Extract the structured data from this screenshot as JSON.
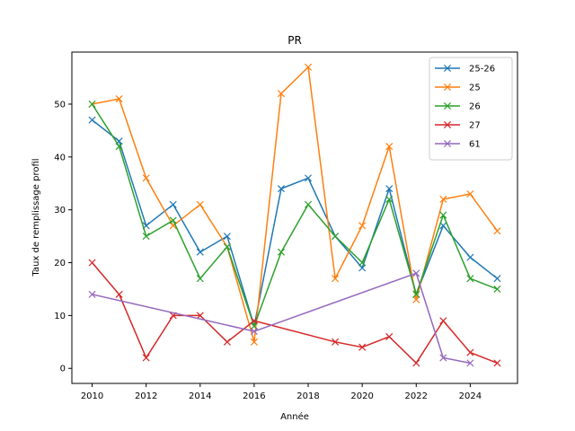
{
  "chart_data": {
    "type": "line",
    "title": "PR",
    "xlabel": "Année",
    "ylabel": "Taux de remplissage profil",
    "xlim": [
      2009.25,
      2025.75
    ],
    "ylim": [
      -2.85,
      59.85
    ],
    "xticks": [
      2010,
      2012,
      2014,
      2016,
      2018,
      2020,
      2022,
      2024
    ],
    "yticks": [
      0,
      10,
      20,
      30,
      40,
      50
    ],
    "grid": false,
    "legend_position": "top-right",
    "marker": "x",
    "series": [
      {
        "name": "25-26",
        "color": "#1f77b4",
        "x": [
          2010,
          2011,
          2012,
          2013,
          2014,
          2015,
          2016,
          2017,
          2018,
          2019,
          2020,
          2021,
          2022,
          2023,
          2024,
          2025
        ],
        "y": [
          47,
          43,
          27,
          31,
          22,
          25,
          8,
          34,
          36,
          25,
          19,
          34,
          14,
          27,
          21,
          17
        ]
      },
      {
        "name": "25",
        "color": "#ff7f0e",
        "x": [
          2010,
          2011,
          2012,
          2013,
          2014,
          2015,
          2016,
          2017,
          2018,
          2019,
          2020,
          2021,
          2022,
          2023,
          2024,
          2025
        ],
        "y": [
          50,
          51,
          36,
          27,
          31,
          23,
          5,
          52,
          57,
          17,
          27,
          42,
          13,
          32,
          33,
          26
        ]
      },
      {
        "name": "26",
        "color": "#2ca02c",
        "x": [
          2010,
          2011,
          2012,
          2013,
          2014,
          2015,
          2016,
          2017,
          2018,
          2019,
          2020,
          2021,
          2022,
          2023,
          2024,
          2025
        ],
        "y": [
          50,
          42,
          25,
          28,
          17,
          23,
          8,
          22,
          31,
          25,
          20,
          32,
          14,
          29,
          17,
          15
        ]
      },
      {
        "name": "27",
        "color": "#d62728",
        "x": [
          2010,
          2011,
          2012,
          2013,
          2014,
          2015,
          2016,
          2019,
          2020,
          2021,
          2022,
          2023,
          2024,
          2025
        ],
        "y": [
          20,
          14,
          2,
          10,
          10,
          5,
          9,
          5,
          4,
          6,
          1,
          9,
          3,
          1
        ]
      },
      {
        "name": "61",
        "color": "#9467bd",
        "x": [
          2010,
          2016,
          2022,
          2023,
          2024
        ],
        "y": [
          14,
          7,
          18,
          2,
          1
        ]
      }
    ]
  }
}
